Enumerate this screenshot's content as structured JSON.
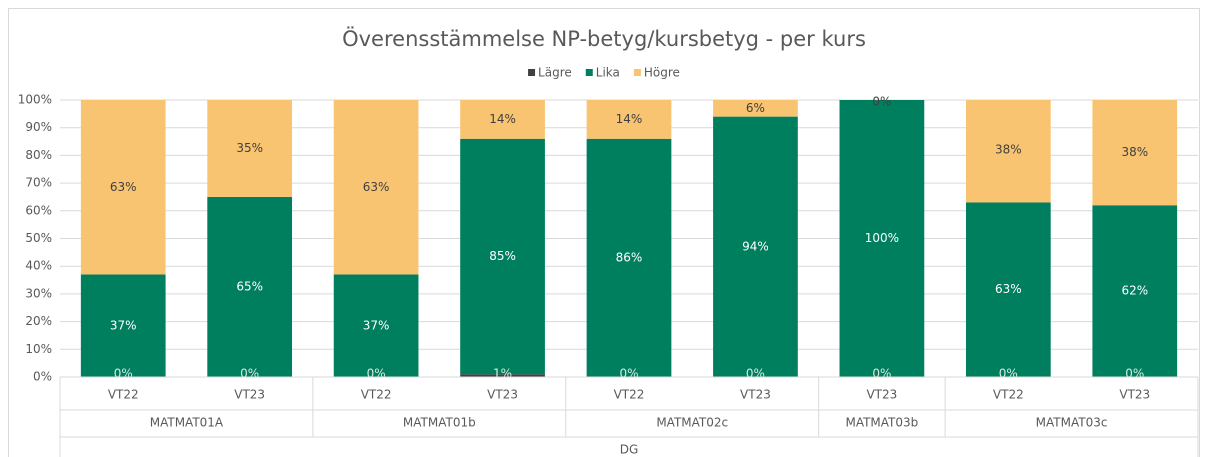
{
  "chart_data": {
    "type": "bar",
    "stacked": true,
    "title": "Överensstämmelse NP-betyg/kursbetyg - per kurs",
    "super_group": "DG",
    "groups": [
      {
        "name": "MATMAT01A",
        "categories": [
          "VT22",
          "VT23"
        ]
      },
      {
        "name": "MATMAT01b",
        "categories": [
          "VT22",
          "VT23"
        ]
      },
      {
        "name": "MATMAT02c",
        "categories": [
          "VT22",
          "VT23"
        ]
      },
      {
        "name": "MATMAT03b",
        "categories": [
          "VT23"
        ]
      },
      {
        "name": "MATMAT03c",
        "categories": [
          "VT22",
          "VT23"
        ]
      }
    ],
    "series": [
      {
        "name": "Lägre",
        "color": "#404040",
        "values": [
          0,
          0,
          0,
          1,
          0,
          0,
          0,
          0,
          0
        ],
        "value_labels": [
          "0%",
          "0%",
          "0%",
          "1%",
          "0%",
          "0%",
          "0%",
          "0%",
          "0%"
        ]
      },
      {
        "name": "Lika",
        "color": "#007f5f",
        "values": [
          37,
          65,
          37,
          85,
          86,
          94,
          100,
          63,
          62
        ],
        "value_labels": [
          "37%",
          "65%",
          "37%",
          "85%",
          "86%",
          "94%",
          "100%",
          "63%",
          "62%"
        ]
      },
      {
        "name": "Högre",
        "color": "#f8c471",
        "values": [
          63,
          35,
          63,
          14,
          14,
          6,
          0,
          38,
          38
        ],
        "value_labels": [
          "63%",
          "35%",
          "63%",
          "14%",
          "14%",
          "6%",
          "0%",
          "38%",
          "38%"
        ]
      }
    ],
    "ylim": [
      0,
      100
    ],
    "yticks": [
      {
        "value": 0,
        "label": "0%"
      },
      {
        "value": 10,
        "label": "10%"
      },
      {
        "value": 20,
        "label": "20%"
      },
      {
        "value": 30,
        "label": "30%"
      },
      {
        "value": 40,
        "label": "40%"
      },
      {
        "value": 50,
        "label": "50%"
      },
      {
        "value": 60,
        "label": "60%"
      },
      {
        "value": 70,
        "label": "70%"
      },
      {
        "value": 80,
        "label": "80%"
      },
      {
        "value": 90,
        "label": "90%"
      },
      {
        "value": 100,
        "label": "100%"
      }
    ],
    "grid": true,
    "legend": "top"
  }
}
